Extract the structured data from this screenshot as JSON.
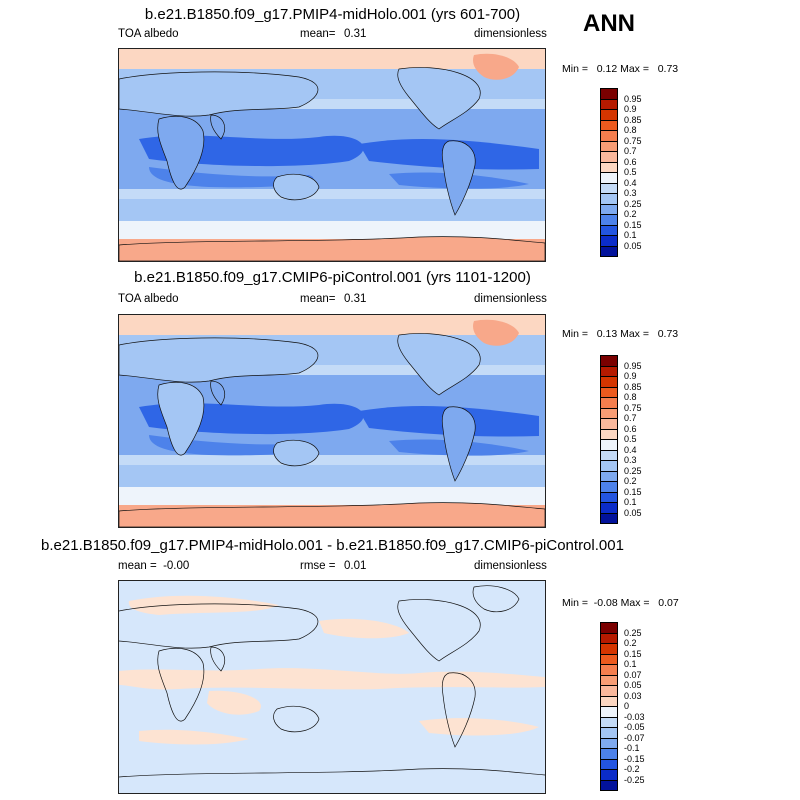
{
  "season": "ANN",
  "panels": [
    {
      "title": "b.e21.B1850.f09_g17.PMIP4-midHolo.001 (yrs 601-700)",
      "left": "TOA albedo",
      "middle_label": "mean=",
      "middle_value": "0.31",
      "right": "dimensionless",
      "minmax": "Min =   0.12 Max =   0.73",
      "colorbar_labels": [
        "0.95",
        "0.9",
        "0.85",
        "0.8",
        "0.75",
        "0.7",
        "0.6",
        "0.5",
        "0.4",
        "0.3",
        "0.25",
        "0.2",
        "0.15",
        "0.1",
        "0.05"
      ]
    },
    {
      "title": "b.e21.B1850.f09_g17.CMIP6-piControl.001 (yrs 1101-1200)",
      "left": "TOA albedo",
      "middle_label": "mean=",
      "middle_value": "0.31",
      "right": "dimensionless",
      "minmax": "Min =   0.13 Max =   0.73",
      "colorbar_labels": [
        "0.95",
        "0.9",
        "0.85",
        "0.8",
        "0.75",
        "0.7",
        "0.6",
        "0.5",
        "0.4",
        "0.3",
        "0.25",
        "0.2",
        "0.15",
        "0.1",
        "0.05"
      ]
    },
    {
      "title": "b.e21.B1850.f09_g17.PMIP4-midHolo.001 - b.e21.B1850.f09_g17.CMIP6-piControl.001",
      "left": "mean =  -0.00",
      "middle_label": "rmse =",
      "middle_value": "0.01",
      "right": "dimensionless",
      "minmax": "Min =  -0.08 Max =   0.07",
      "colorbar_labels": [
        "0.25",
        "0.2",
        "0.15",
        "0.1",
        "0.07",
        "0.05",
        "0.03",
        "0",
        "-0.03",
        "-0.05",
        "-0.07",
        "-0.1",
        "-0.15",
        "-0.2",
        "-0.25"
      ]
    }
  ],
  "colors": {
    "colorbar_ramp": [
      "#7a0000",
      "#b51a00",
      "#d43500",
      "#ec5a1e",
      "#f57e4e",
      "#f89d75",
      "#fab89c",
      "#fcd7c2",
      "#eef4fb",
      "#c4dbf7",
      "#a4c6f4",
      "#7ea9ef",
      "#4d82ea",
      "#2355e0",
      "#0b2cc9",
      "#02129b"
    ],
    "ocean_deep": "#2f66e6",
    "ocean_mid": "#7ea9ef",
    "ocean_light": "#c4dbf7",
    "ice_salmon": "#f8a88a",
    "pale_peach": "#fcd7c2",
    "diff_blue": "#d6e7fb",
    "diff_peach": "#fde3d2"
  },
  "chart_data": [
    {
      "type": "heatmap",
      "title": "b.e21.B1850.f09_g17.PMIP4-midHolo.001 (yrs 601-700)",
      "variable": "TOA albedo",
      "units": "dimensionless",
      "mean": 0.31,
      "min": 0.12,
      "max": 0.73,
      "contour_levels": [
        0.05,
        0.1,
        0.15,
        0.2,
        0.25,
        0.3,
        0.4,
        0.5,
        0.6,
        0.7,
        0.75,
        0.8,
        0.85,
        0.9,
        0.95
      ]
    },
    {
      "type": "heatmap",
      "title": "b.e21.B1850.f09_g17.CMIP6-piControl.001 (yrs 1101-1200)",
      "variable": "TOA albedo",
      "units": "dimensionless",
      "mean": 0.31,
      "min": 0.13,
      "max": 0.73,
      "contour_levels": [
        0.05,
        0.1,
        0.15,
        0.2,
        0.25,
        0.3,
        0.4,
        0.5,
        0.6,
        0.7,
        0.75,
        0.8,
        0.85,
        0.9,
        0.95
      ]
    },
    {
      "type": "heatmap",
      "title": "b.e21.B1850.f09_g17.PMIP4-midHolo.001 - b.e21.B1850.f09_g17.CMIP6-piControl.001",
      "units": "dimensionless",
      "mean": -0.0,
      "rmse": 0.01,
      "min": -0.08,
      "max": 0.07,
      "contour_levels": [
        -0.25,
        -0.2,
        -0.15,
        -0.1,
        -0.07,
        -0.05,
        -0.03,
        0,
        0.03,
        0.05,
        0.07,
        0.1,
        0.15,
        0.2,
        0.25
      ]
    }
  ]
}
